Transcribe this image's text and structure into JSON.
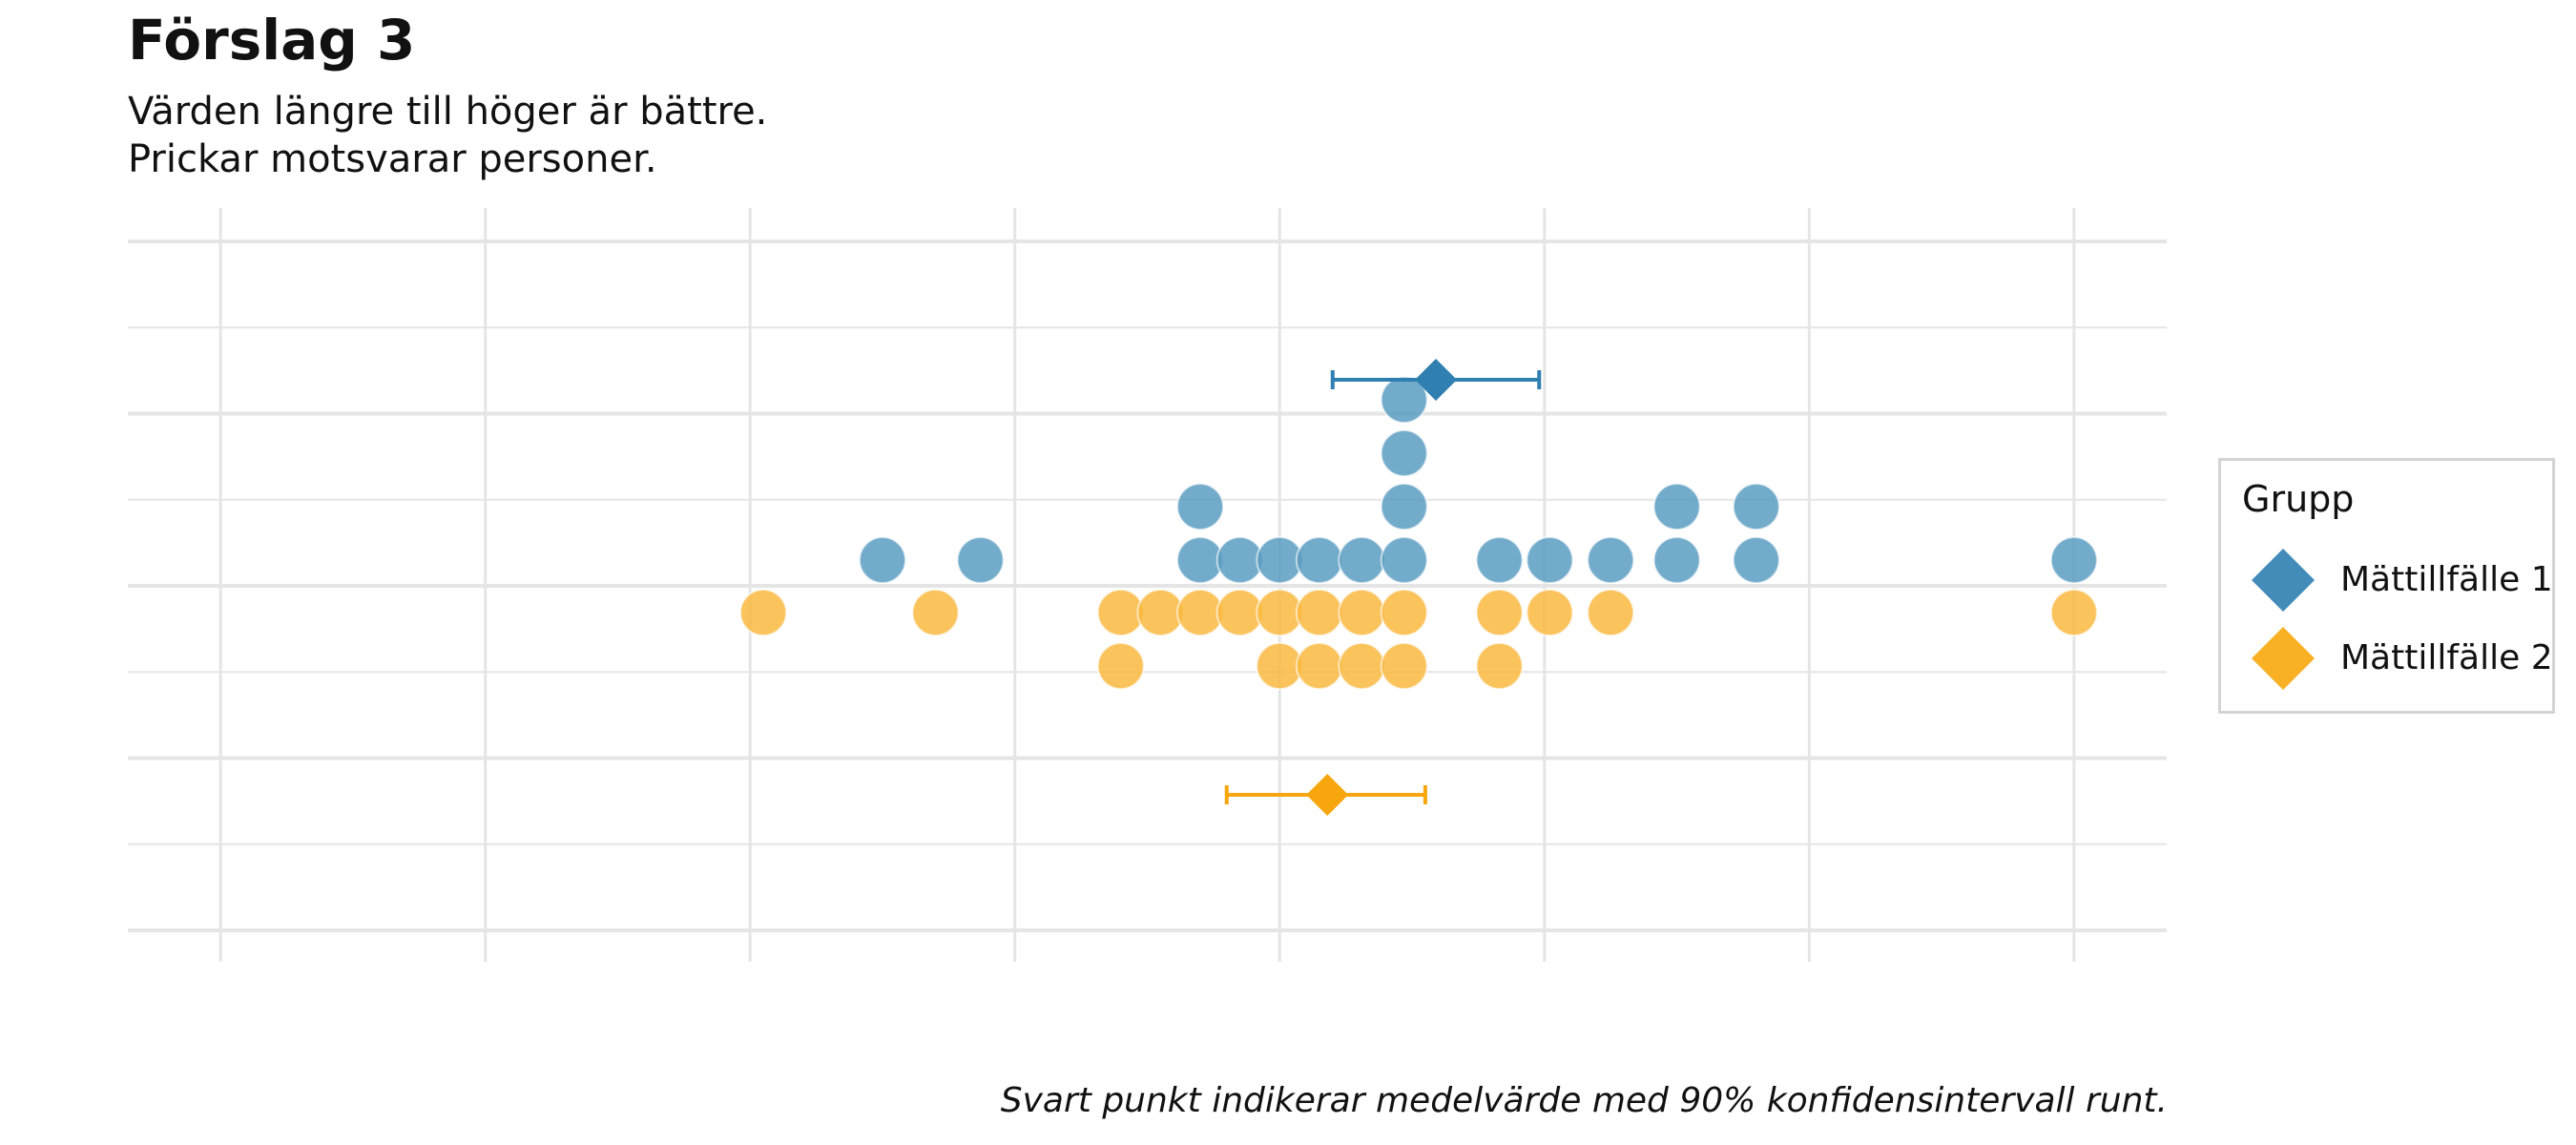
{
  "title": "Förslag 3",
  "subtitle_lines": [
    "Värden längre till höger är bättre.",
    "Prickar motsvarar personer."
  ],
  "caption": "Svart punkt indikerar medelvärde med 90% konfidensintervall runt.",
  "legend": {
    "title": "Grupp",
    "items": [
      {
        "label": "Mättillfälle 1",
        "color": "#2f7fb1",
        "icon": "diamond-icon"
      },
      {
        "label": "Mättillfälle 2",
        "color": "#f7a70d",
        "icon": "diamond-icon"
      }
    ]
  },
  "chart_data": {
    "type": "dotplot",
    "xlim": [
      -0.35,
      7.35
    ],
    "x_ticks": [
      0,
      1,
      2,
      3,
      4,
      5,
      6,
      7
    ],
    "tick_labels_shown": false,
    "grid": true,
    "legend_position": "right",
    "series": [
      {
        "name": "Mättillfälle 1",
        "color": "#5b9cc2",
        "mean_color": "#2f7fb1",
        "side": "above",
        "dots": [
          {
            "x": 2.5,
            "count": 1
          },
          {
            "x": 2.87,
            "count": 1
          },
          {
            "x": 3.7,
            "count": 2
          },
          {
            "x": 3.85,
            "count": 1
          },
          {
            "x": 4.0,
            "count": 1
          },
          {
            "x": 4.15,
            "count": 1
          },
          {
            "x": 4.31,
            "count": 1
          },
          {
            "x": 4.47,
            "count": 4
          },
          {
            "x": 4.83,
            "count": 1
          },
          {
            "x": 5.02,
            "count": 1
          },
          {
            "x": 5.25,
            "count": 1
          },
          {
            "x": 5.5,
            "count": 2
          },
          {
            "x": 5.8,
            "count": 2
          },
          {
            "x": 7.0,
            "count": 1
          }
        ],
        "mean": 4.59,
        "ci": [
          4.2,
          4.98
        ]
      },
      {
        "name": "Mättillfälle 2",
        "color": "#f9b93f",
        "mean_color": "#f7a70d",
        "side": "below",
        "dots": [
          {
            "x": 2.05,
            "count": 1
          },
          {
            "x": 2.7,
            "count": 1
          },
          {
            "x": 3.4,
            "count": 2
          },
          {
            "x": 3.55,
            "count": 1
          },
          {
            "x": 3.7,
            "count": 1
          },
          {
            "x": 3.85,
            "count": 1
          },
          {
            "x": 4.0,
            "count": 2
          },
          {
            "x": 4.15,
            "count": 2
          },
          {
            "x": 4.31,
            "count": 2
          },
          {
            "x": 4.47,
            "count": 2
          },
          {
            "x": 4.83,
            "count": 2
          },
          {
            "x": 5.02,
            "count": 1
          },
          {
            "x": 5.25,
            "count": 1
          },
          {
            "x": 7.0,
            "count": 1
          }
        ],
        "mean": 4.18,
        "ci": [
          3.8,
          4.55
        ]
      }
    ]
  }
}
